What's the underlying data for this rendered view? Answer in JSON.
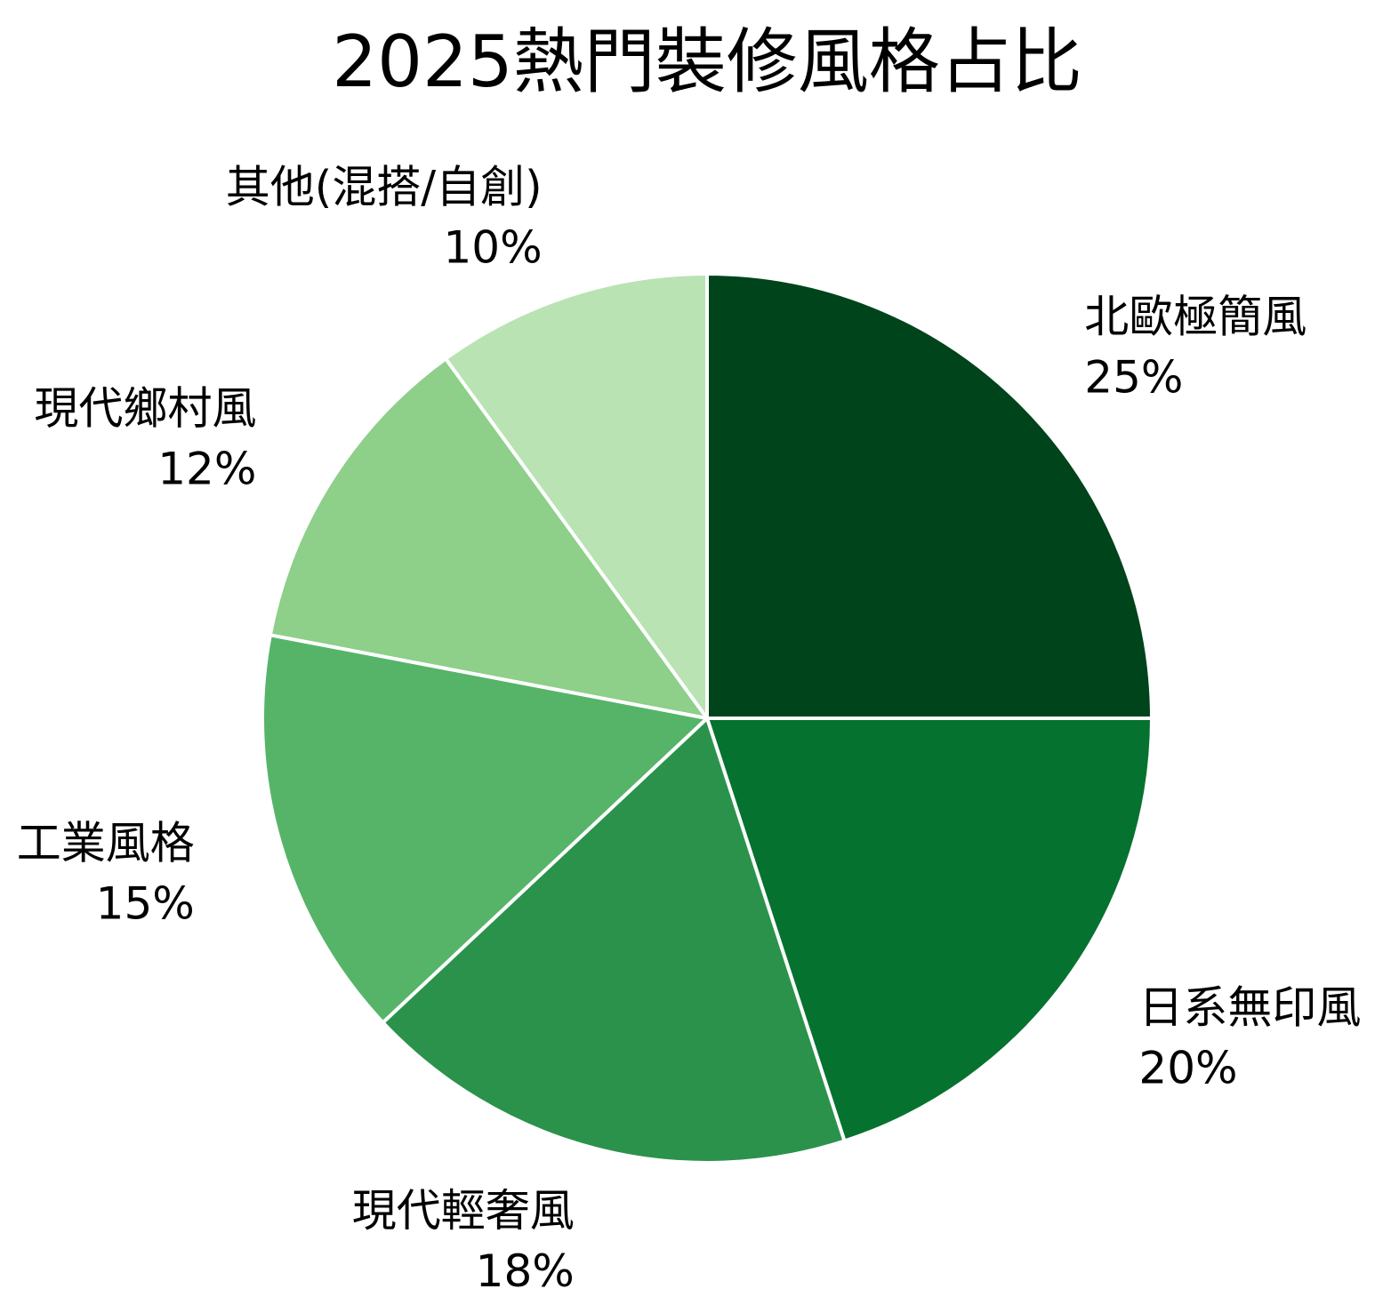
{
  "chart_data": {
    "type": "pie",
    "title": "2025熱門裝修風格占比",
    "start_angle_deg": 90,
    "direction": "clockwise",
    "slices": [
      {
        "label": "北歐極簡風",
        "value": 25,
        "value_label": "25%",
        "color": "#00441b"
      },
      {
        "label": "日系無印風",
        "value": 20,
        "value_label": "20%",
        "color": "#06722f"
      },
      {
        "label": "現代輕奢風",
        "value": 18,
        "value_label": "18%",
        "color": "#2b924b"
      },
      {
        "label": "工業風格",
        "value": 15,
        "value_label": "15%",
        "color": "#56b469"
      },
      {
        "label": "現代鄉村風",
        "value": 12,
        "value_label": "12%",
        "color": "#8ecf89"
      },
      {
        "label": "其他(混搭/自創)",
        "value": 10,
        "value_label": "10%",
        "color": "#b9e3b3"
      }
    ],
    "slice_border_color": "#ffffff"
  }
}
